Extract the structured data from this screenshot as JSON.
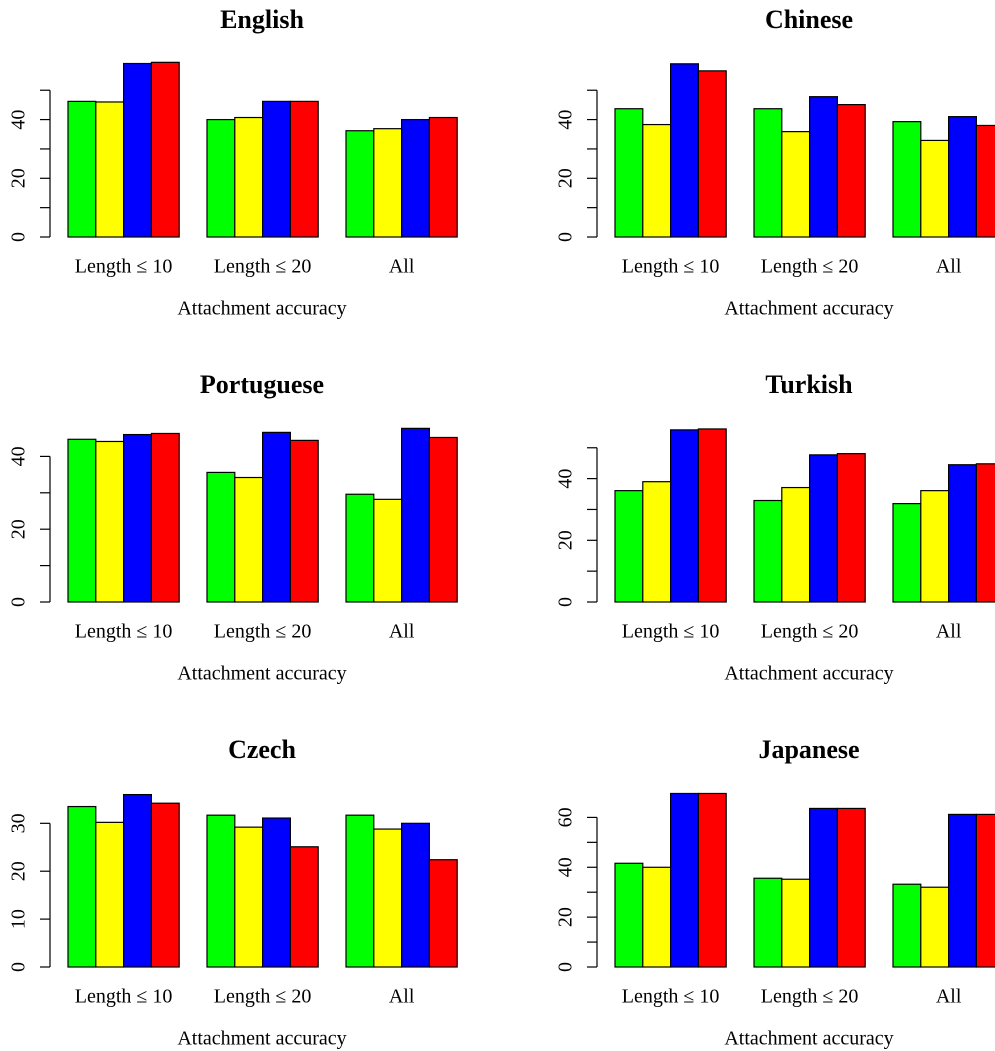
{
  "chart_data": [
    {
      "type": "bar",
      "title": "English",
      "categories": [
        "Length ≤ 10",
        "Length ≤ 20",
        "All"
      ],
      "xlabel": "Attachment accuracy",
      "series": [
        {
          "color": "#00ff00",
          "values": [
            46.2,
            40,
            36.2
          ]
        },
        {
          "color": "#ffff00",
          "values": [
            46,
            40.7,
            36.9
          ]
        },
        {
          "color": "#0000ff",
          "values": [
            59.1,
            46.2,
            40
          ]
        },
        {
          "color": "#ff0000",
          "values": [
            59.5,
            46.2,
            40.7
          ]
        }
      ],
      "ylim": [
        0,
        62
      ],
      "yticks": [
        0,
        20,
        40
      ],
      "yminorticks": [
        10,
        30,
        50
      ]
    },
    {
      "type": "bar",
      "title": "Chinese",
      "categories": [
        "Length ≤ 10",
        "Length ≤ 20",
        "All"
      ],
      "xlabel": "Attachment accuracy",
      "series": [
        {
          "color": "#00ff00",
          "values": [
            43.7,
            43.7,
            39.3
          ]
        },
        {
          "color": "#ffff00",
          "values": [
            38.3,
            35.9,
            32.9
          ]
        },
        {
          "color": "#0000ff",
          "values": [
            59,
            47.8,
            41
          ]
        },
        {
          "color": "#ff0000",
          "values": [
            56.6,
            45.1,
            38
          ]
        }
      ],
      "ylim": [
        0,
        62
      ],
      "yticks": [
        0,
        20,
        40
      ],
      "yminorticks": [
        10,
        30,
        50
      ]
    },
    {
      "type": "bar",
      "title": "Portuguese",
      "categories": [
        "Length ≤ 10",
        "Length ≤ 20",
        "All"
      ],
      "xlabel": "Attachment accuracy",
      "series": [
        {
          "color": "#00ff00",
          "values": [
            44.7,
            35.6,
            29.6
          ]
        },
        {
          "color": "#ffff00",
          "values": [
            44.1,
            34.2,
            28.2
          ]
        },
        {
          "color": "#0000ff",
          "values": [
            46,
            46.6,
            47.7
          ]
        },
        {
          "color": "#ff0000",
          "values": [
            46.3,
            44.4,
            45.2
          ]
        }
      ],
      "ylim": [
        0,
        50
      ],
      "yticks": [
        0,
        20,
        40
      ],
      "yminorticks": [
        10,
        30
      ]
    },
    {
      "type": "bar",
      "title": "Turkish",
      "categories": [
        "Length ≤ 10",
        "Length ≤ 20",
        "All"
      ],
      "xlabel": "Attachment accuracy",
      "series": [
        {
          "color": "#00ff00",
          "values": [
            36.1,
            32.9,
            31.9
          ]
        },
        {
          "color": "#ffff00",
          "values": [
            39,
            37.1,
            36.1
          ]
        },
        {
          "color": "#0000ff",
          "values": [
            55.8,
            47.7,
            44.5
          ]
        },
        {
          "color": "#ff0000",
          "values": [
            56.1,
            48.1,
            44.8
          ]
        }
      ],
      "ylim": [
        0,
        59
      ],
      "yticks": [
        0,
        20,
        40
      ],
      "yminorticks": [
        10,
        30,
        50
      ]
    },
    {
      "type": "bar",
      "title": "Czech",
      "categories": [
        "Length ≤ 10",
        "Length ≤ 20",
        "All"
      ],
      "xlabel": "Attachment accuracy",
      "series": [
        {
          "color": "#00ff00",
          "values": [
            33.5,
            31.7,
            31.7
          ]
        },
        {
          "color": "#ffff00",
          "values": [
            30.2,
            29.2,
            28.8
          ]
        },
        {
          "color": "#0000ff",
          "values": [
            36,
            31.1,
            30
          ]
        },
        {
          "color": "#ff0000",
          "values": [
            34.2,
            25.1,
            22.4
          ]
        }
      ],
      "ylim": [
        0,
        38
      ],
      "yticks": [
        0,
        10,
        20,
        30
      ],
      "yminorticks": []
    },
    {
      "type": "bar",
      "title": "Japanese",
      "categories": [
        "Length ≤ 10",
        "Length ≤ 20",
        "All"
      ],
      "xlabel": "Attachment accuracy",
      "series": [
        {
          "color": "#00ff00",
          "values": [
            41.6,
            35.6,
            33.2
          ]
        },
        {
          "color": "#ffff00",
          "values": [
            40,
            35.2,
            32
          ]
        },
        {
          "color": "#0000ff",
          "values": [
            69.6,
            63.6,
            61.2
          ]
        },
        {
          "color": "#ff0000",
          "values": [
            69.6,
            63.6,
            61.2
          ]
        }
      ],
      "ylim": [
        0,
        73
      ],
      "yticks": [
        0,
        20,
        40,
        60
      ],
      "yminorticks": [
        10,
        30,
        50
      ]
    }
  ]
}
